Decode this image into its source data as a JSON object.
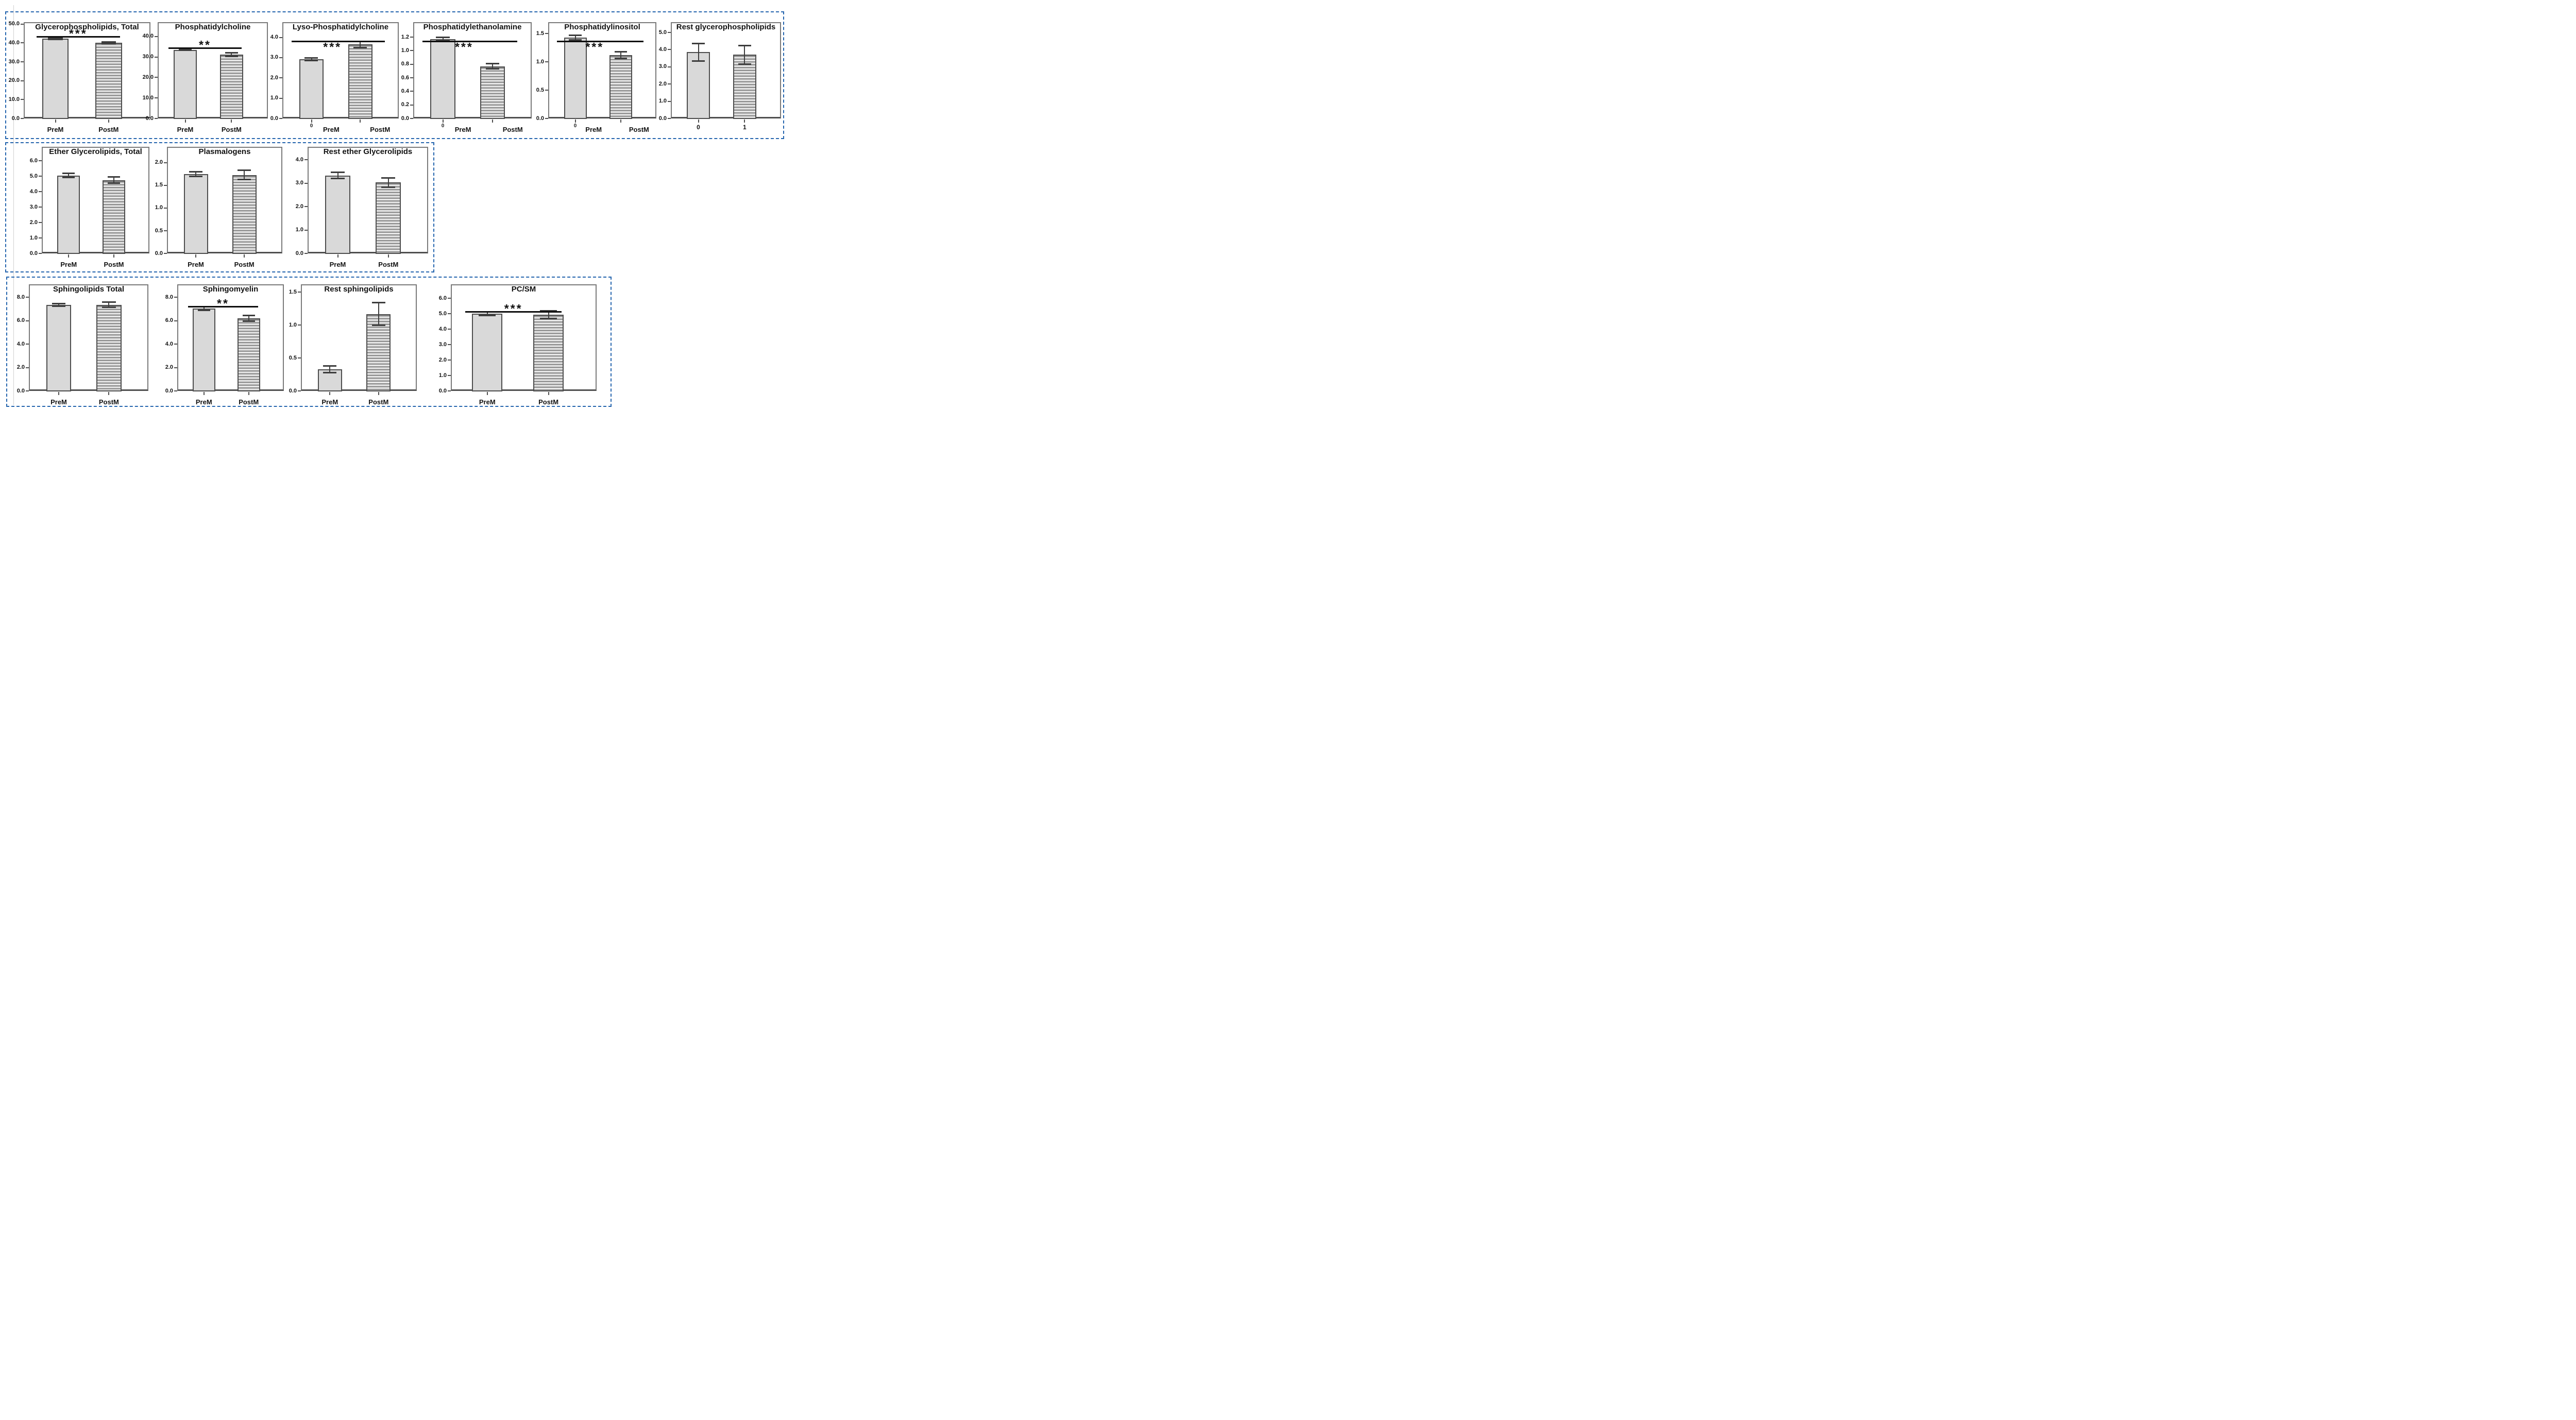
{
  "figure": {
    "description": "Bar chart figure comparing lipid class levels between premenopausal (PreM) and postmenopausal (PostM) groups",
    "groups": [
      "PreM",
      "PostM"
    ],
    "bar_patterns": [
      "solid",
      "horizontal-stripes"
    ],
    "colors": {
      "bar_fill": "#d9d9d9",
      "bar_border": "#4d4d4d",
      "stripe_dark": "#8f8f8f",
      "stripe_light": "#e8e8e8",
      "panel_border": "#7a7a7a",
      "axis": "#4f4f4f",
      "group_box_dash": "#2565ae",
      "text": "#111111"
    }
  },
  "chart_data": [
    {
      "type": "bar",
      "title": "Glycerophospholipids, Total",
      "categories": [
        "PreM",
        "PostM"
      ],
      "values": [
        42.4,
        40.1
      ],
      "errors": [
        0.4,
        0.5
      ],
      "yticks": [
        "50.0",
        "40.0",
        "30.0",
        "20.0",
        "10.0",
        "0.0"
      ],
      "ytick_values": [
        50,
        40,
        30,
        20,
        10,
        0
      ],
      "ylim": [
        0,
        51
      ],
      "significance": "***",
      "sig_position": "above-bars",
      "extra_x_labels": []
    },
    {
      "type": "bar",
      "title": "Phosphatidylcholine",
      "categories": [
        "PreM",
        "PostM"
      ],
      "values": [
        33.5,
        31.2
      ],
      "errors": [
        0.3,
        0.8
      ],
      "yticks": [
        "40.0",
        "30.0",
        "20.0",
        "10.0",
        "0.0"
      ],
      "ytick_values": [
        40,
        30,
        20,
        10,
        0
      ],
      "ylim": [
        0,
        47
      ],
      "significance": "**",
      "sig_position": "above-bars",
      "extra_x_labels": []
    },
    {
      "type": "bar",
      "title": "Lyso-Phosphatidylcholine",
      "categories": [
        "PreM",
        "PostM"
      ],
      "values": [
        2.92,
        3.65
      ],
      "errors": [
        0.07,
        0.15
      ],
      "yticks": [
        "4.0",
        "3.0",
        "2.0",
        "1.0",
        "0.0"
      ],
      "ytick_values": [
        4,
        3,
        2,
        1,
        0
      ],
      "ylim": [
        0,
        4.75
      ],
      "significance": "***",
      "sig_position": "below-title",
      "extra_x_labels": [
        "0"
      ]
    },
    {
      "type": "bar",
      "title": "Phosphatidylethanolamine",
      "categories": [
        "PreM",
        "PostM"
      ],
      "values": [
        1.17,
        0.77
      ],
      "errors": [
        0.03,
        0.04
      ],
      "yticks": [
        "1.2",
        "1.0",
        "0.8",
        "0.6",
        "0.4",
        "0.2",
        "0.0"
      ],
      "ytick_values": [
        1.2,
        1.0,
        0.8,
        0.6,
        0.4,
        0.2,
        0
      ],
      "ylim": [
        0,
        1.42
      ],
      "significance": "***",
      "sig_position": "below-title",
      "extra_x_labels": [
        "0"
      ]
    },
    {
      "type": "bar",
      "title": "Phosphatidylinositol",
      "categories": [
        "PreM",
        "PostM"
      ],
      "values": [
        1.43,
        1.12
      ],
      "errors": [
        0.04,
        0.06
      ],
      "yticks": [
        "1.5",
        "1.0",
        "0.5",
        "0.0"
      ],
      "ytick_values": [
        1.5,
        1.0,
        0.5,
        0
      ],
      "ylim": [
        0,
        1.7
      ],
      "significance": "***",
      "sig_position": "below-title",
      "extra_x_labels": [
        "0"
      ]
    },
    {
      "type": "bar",
      "title": "Rest glycerophospholipids",
      "categories": [
        "0",
        "1"
      ],
      "values": [
        3.85,
        3.7
      ],
      "errors": [
        0.5,
        0.55
      ],
      "yticks": [
        "5.0",
        "4.0",
        "3.0",
        "2.0",
        "1.0",
        "0.0"
      ],
      "ytick_values": [
        5,
        4,
        3,
        2,
        1,
        0
      ],
      "ylim": [
        0,
        5.6
      ],
      "significance": null,
      "sig_position": null,
      "extra_x_labels": []
    },
    {
      "type": "bar",
      "title": "Ether Glycerolipids, Total",
      "categories": [
        "PreM",
        "PostM"
      ],
      "values": [
        5.05,
        4.75
      ],
      "errors": [
        0.12,
        0.2
      ],
      "yticks": [
        "6.0",
        "5.0",
        "4.0",
        "3.0",
        "2.0",
        "1.0",
        "0.0"
      ],
      "ytick_values": [
        6,
        5,
        4,
        3,
        2,
        1,
        0
      ],
      "ylim": [
        0,
        6.9
      ],
      "significance": null,
      "sig_position": null,
      "extra_x_labels": []
    },
    {
      "type": "bar",
      "title": "Plasmalogens",
      "categories": [
        "PreM",
        "PostM"
      ],
      "values": [
        1.75,
        1.73
      ],
      "errors": [
        0.05,
        0.1
      ],
      "yticks": [
        "2.0",
        "1.5",
        "1.0",
        "0.5",
        "0.0"
      ],
      "ytick_values": [
        2,
        1.5,
        1,
        0.5,
        0
      ],
      "ylim": [
        0,
        2.35
      ],
      "significance": null,
      "sig_position": null,
      "extra_x_labels": []
    },
    {
      "type": "bar",
      "title": "Rest ether Glycerolipids",
      "categories": [
        "PreM",
        "PostM"
      ],
      "values": [
        3.33,
        3.03
      ],
      "errors": [
        0.13,
        0.2
      ],
      "yticks": [
        "4.0",
        "3.0",
        "2.0",
        "1.0",
        "0.0"
      ],
      "ytick_values": [
        4,
        3,
        2,
        1,
        0
      ],
      "ylim": [
        0,
        4.55
      ],
      "significance": null,
      "sig_position": null,
      "extra_x_labels": []
    },
    {
      "type": "bar",
      "title": "Sphingolipids Total",
      "categories": [
        "PreM",
        "PostM"
      ],
      "values": [
        7.35,
        7.35
      ],
      "errors": [
        0.1,
        0.22
      ],
      "yticks": [
        "8.0",
        "6.0",
        "4.0",
        "2.0",
        "0.0"
      ],
      "ytick_values": [
        8,
        6,
        4,
        2,
        0
      ],
      "ylim": [
        0,
        9.1
      ],
      "significance": null,
      "sig_position": null,
      "extra_x_labels": []
    },
    {
      "type": "bar",
      "title": "Sphingomyelin",
      "categories": [
        "PreM",
        "PostM"
      ],
      "values": [
        7.05,
        6.2
      ],
      "errors": [
        0.15,
        0.25
      ],
      "yticks": [
        "8.0",
        "6.0",
        "4.0",
        "2.0",
        "0.0"
      ],
      "ytick_values": [
        8,
        6,
        4,
        2,
        0
      ],
      "ylim": [
        0,
        9.1
      ],
      "significance": "**",
      "sig_position": "above-bars",
      "extra_x_labels": []
    },
    {
      "type": "bar",
      "title": "Rest sphingolipids",
      "categories": [
        "PreM",
        "PostM"
      ],
      "values": [
        0.33,
        1.17
      ],
      "errors": [
        0.05,
        0.17
      ],
      "yticks": [
        "1.5",
        "1.0",
        "0.5",
        "0.0"
      ],
      "ytick_values": [
        1.5,
        1.0,
        0.5,
        0
      ],
      "ylim": [
        0,
        1.62
      ],
      "significance": null,
      "sig_position": null,
      "extra_x_labels": []
    },
    {
      "type": "bar",
      "title": "PC/SM",
      "categories": [
        "PreM",
        "PostM"
      ],
      "values": [
        5.0,
        4.93
      ],
      "errors": [
        0.12,
        0.25
      ],
      "yticks": [
        "6.0",
        "5.0",
        "4.0",
        "3.0",
        "2.0",
        "1.0",
        "0.0"
      ],
      "ytick_values": [
        6,
        5,
        4,
        3,
        2,
        1,
        0
      ],
      "ylim": [
        0,
        6.9
      ],
      "significance": "***",
      "sig_position": "above-bars",
      "extra_x_labels": []
    }
  ]
}
